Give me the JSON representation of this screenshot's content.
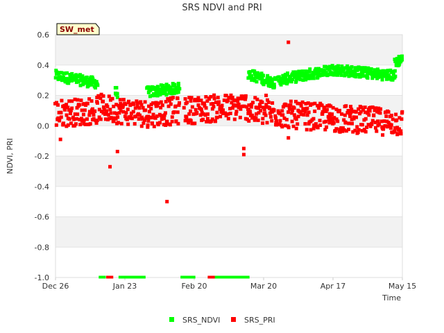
{
  "chart_data": {
    "type": "scatter",
    "title": "SRS NDVI and PRI",
    "xlabel": "Time",
    "ylabel": "NDVI, PRI",
    "site_label": "SW_met",
    "x_ticks": [
      {
        "day": 0,
        "label": "Dec 26"
      },
      {
        "day": 28,
        "label": "Jan 23"
      },
      {
        "day": 56,
        "label": "Feb 20"
      },
      {
        "day": 84,
        "label": "Mar 20"
      },
      {
        "day": 112,
        "label": "Apr 17"
      },
      {
        "day": 140,
        "label": "May 15"
      }
    ],
    "xlim": [
      0,
      140
    ],
    "ylim": [
      -1.0,
      0.6
    ],
    "y_ticks": [
      0.6,
      0.4,
      0.2,
      0.0,
      -0.2,
      -0.4,
      -0.6,
      -0.8,
      -1.0
    ],
    "y_tick_labels": [
      "0.6",
      "0.4",
      "0.2",
      "0.0",
      "-0.2",
      "-0.4",
      "-0.6",
      "-0.8",
      "-1.0"
    ],
    "grid": true,
    "legend_position": "bottom-center",
    "series": [
      {
        "name": "SRS_NDVI",
        "color": "#00ff00",
        "segments": [
          {
            "x0": 0.0,
            "x1": 17.0,
            "y0": 0.33,
            "y1": 0.28
          },
          {
            "x0": 24.0,
            "x1": 25.0,
            "y0": 0.22,
            "y1": 0.22
          },
          {
            "x0": 37.0,
            "x1": 50.0,
            "y0": 0.22,
            "y1": 0.25
          },
          {
            "x0": 78.0,
            "x1": 89.0,
            "y0": 0.34,
            "y1": 0.28
          },
          {
            "x0": 90.0,
            "x1": 112.0,
            "y0": 0.3,
            "y1": 0.37
          },
          {
            "x0": 112.0,
            "x1": 137.0,
            "y0": 0.37,
            "y1": 0.33
          },
          {
            "x0": 137.0,
            "x1": 140.0,
            "y0": 0.42,
            "y1": 0.44
          }
        ],
        "gap_markers_y": -1.0,
        "gap_markers": [
          [
            18,
            20
          ],
          [
            26,
            36
          ],
          [
            51,
            56
          ],
          [
            62,
            78
          ]
        ]
      },
      {
        "name": "SRS_PRI",
        "color": "#ff0000",
        "segments": [
          {
            "x0": 0.0,
            "x1": 17.0,
            "y0": 0.08,
            "y1": 0.1
          },
          {
            "x0": 17.0,
            "x1": 37.0,
            "y0": 0.12,
            "y1": 0.08
          },
          {
            "x0": 37.0,
            "x1": 50.0,
            "y0": 0.08,
            "y1": 0.1
          },
          {
            "x0": 52.0,
            "x1": 78.0,
            "y0": 0.1,
            "y1": 0.13
          },
          {
            "x0": 78.0,
            "x1": 89.0,
            "y0": 0.1,
            "y1": 0.08
          },
          {
            "x0": 89.0,
            "x1": 112.0,
            "y0": 0.08,
            "y1": 0.05
          },
          {
            "x0": 112.0,
            "x1": 140.0,
            "y0": 0.05,
            "y1": 0.02
          }
        ],
        "outliers": [
          {
            "x": 2,
            "y": -0.09
          },
          {
            "x": 22,
            "y": -0.27
          },
          {
            "x": 25,
            "y": -0.17
          },
          {
            "x": 45,
            "y": -0.5
          },
          {
            "x": 94,
            "y": 0.55
          },
          {
            "x": 94,
            "y": -0.08
          },
          {
            "x": 76,
            "y": -0.19
          },
          {
            "x": 76,
            "y": -0.15
          },
          {
            "x": 85,
            "y": 0.2
          }
        ],
        "gap_markers_y": -1.0,
        "gap_markers": [
          [
            21,
            23
          ],
          [
            62,
            64
          ]
        ]
      }
    ]
  }
}
